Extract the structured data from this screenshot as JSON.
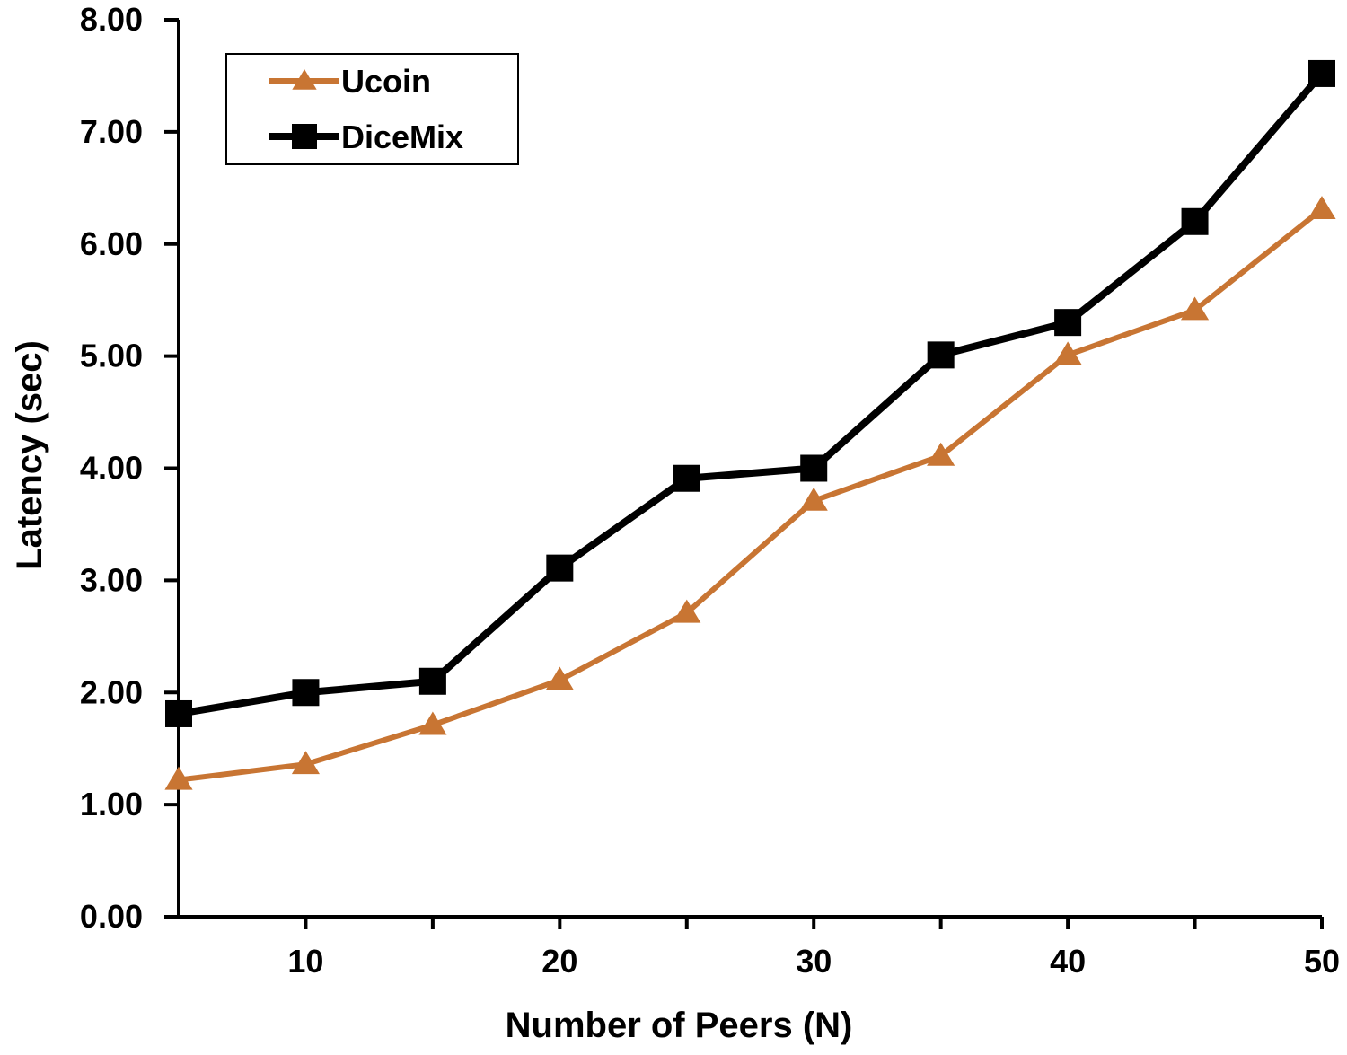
{
  "chart_data": {
    "type": "line",
    "title": "",
    "xlabel": "Number of Peers (N)",
    "ylabel": "Latency (sec)",
    "x": [
      5,
      10,
      15,
      20,
      25,
      30,
      35,
      40,
      45,
      50
    ],
    "xlim": [
      5,
      50
    ],
    "ylim": [
      0,
      8
    ],
    "x_ticks": [
      10,
      20,
      30,
      40,
      50
    ],
    "y_ticks": [
      "0.00",
      "1.00",
      "2.00",
      "3.00",
      "4.00",
      "5.00",
      "6.00",
      "7.00",
      "8.00"
    ],
    "grid": false,
    "legend_position": "top-left",
    "series": [
      {
        "name": "Ucoin",
        "color": "#c87533",
        "marker": "triangle",
        "values": [
          1.22,
          1.36,
          1.71,
          2.11,
          2.71,
          3.71,
          4.11,
          5.01,
          5.41,
          6.31
        ]
      },
      {
        "name": "DiceMix",
        "color": "#000000",
        "marker": "square",
        "values": [
          1.81,
          2.0,
          2.1,
          3.11,
          3.91,
          4.0,
          5.01,
          5.3,
          6.2,
          7.52
        ]
      }
    ]
  }
}
